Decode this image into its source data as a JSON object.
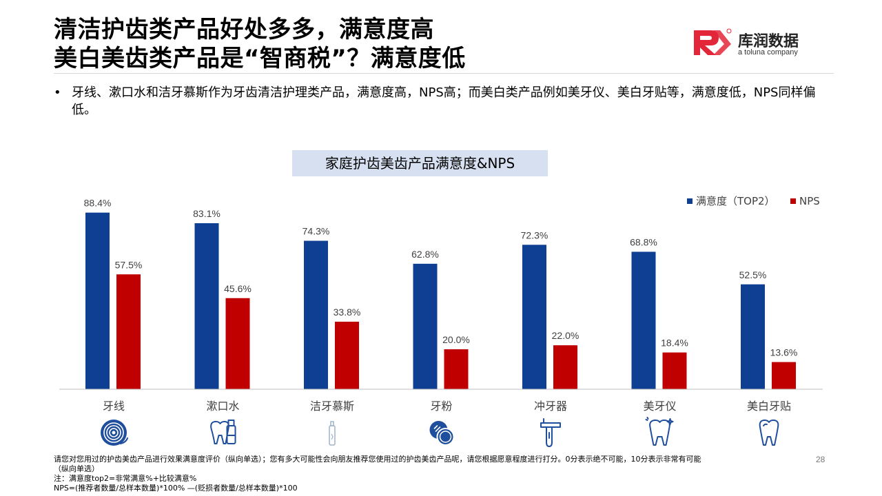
{
  "title": {
    "line1": "清洁护齿类产品好处多多，满意度高",
    "line2": "美白美齿类产品是“智商税”？满意度低"
  },
  "logo": {
    "brand": "库润数据",
    "tagline": "a toluna company"
  },
  "bullet": {
    "marker": "•",
    "text": "牙线、漱口水和洁牙慕斯作为牙齿清洁护理类产品，满意度高，NPS高；而美白类产品例如美牙仪、美白牙贴等，满意度低，NPS同样偏低。"
  },
  "chart_data": {
    "type": "bar",
    "title": "家庭护齿美齿产品满意度&NPS",
    "categories": [
      "牙线",
      "漱口水",
      "洁牙慕斯",
      "牙粉",
      "冲牙器",
      "美牙仪",
      "美白牙贴"
    ],
    "series": [
      {
        "name": "满意度（TOP2）",
        "color": "#0e3f93",
        "values": [
          88.4,
          83.1,
          74.3,
          62.8,
          72.3,
          68.8,
          52.5
        ],
        "labels": [
          "88.4%",
          "83.1%",
          "74.3%",
          "62.8%",
          "72.3%",
          "68.8%",
          "52.5%"
        ]
      },
      {
        "name": "NPS",
        "color": "#c00000",
        "values": [
          57.5,
          45.6,
          33.8,
          20.0,
          22.0,
          18.4,
          13.6
        ],
        "labels": [
          "57.5%",
          "45.6%",
          "33.8%",
          "20.0%",
          "22.0%",
          "18.4%",
          "13.6%"
        ]
      }
    ],
    "ylim": [
      0,
      100
    ],
    "legend": "top-right",
    "grid": false,
    "category_icons": [
      "floss-icon",
      "mouthwash-icon",
      "foam-bottle-icon",
      "tooth-powder-icon",
      "water-flosser-icon",
      "tooth-device-icon",
      "whitening-strip-icon"
    ]
  },
  "footer": {
    "line1": "请您对您用过的护齿美齿产品进行效果满意度评价（纵向单选）；您有多大可能性会向朋友推荐您使用过的护齿美齿产品呢，请您根据愿意程度进行打分。0分表示绝不可能，10分表示非常有可能",
    "line2": "（纵向单选）",
    "line3": "注：满意度top2=非常满意%+比较满意%",
    "line4": "NPS=(推荐者数量/总样本数量)*100% —(贬损者数量/总样本数量)*100"
  },
  "page_number": "28",
  "colors": {
    "accent_blue": "#0e3f93",
    "accent_red": "#c00000",
    "icon_blue": "#1f4e9c",
    "title_bg": "#d6e0f0"
  }
}
